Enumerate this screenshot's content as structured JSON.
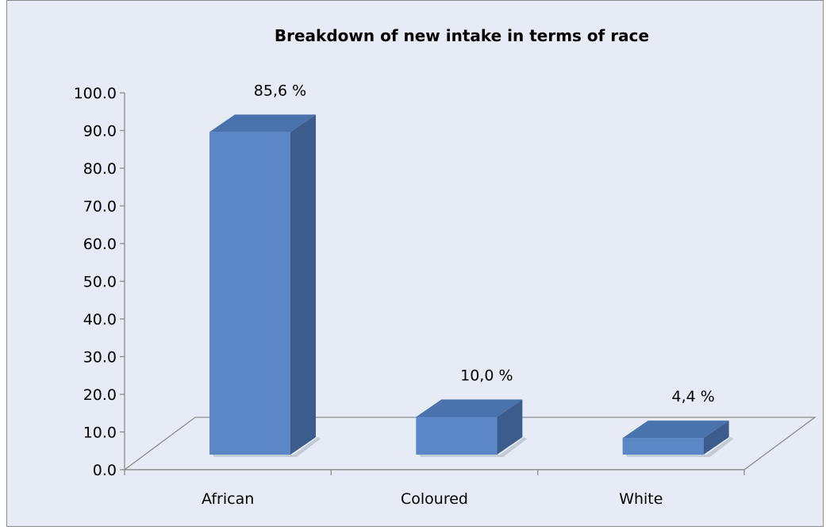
{
  "chart_data": {
    "type": "bar",
    "title": "Breakdown of new intake in terms of race",
    "xlabel": "",
    "ylabel": "",
    "categories": [
      "African",
      "Coloured",
      "White"
    ],
    "values": [
      85.6,
      10.0,
      4.4
    ],
    "data_labels": [
      "85,6 %",
      "10,0 %",
      "4,4 %"
    ],
    "y_ticks": [
      "0.0",
      "10.0",
      "20.0",
      "30.0",
      "40.0",
      "50.0",
      "60.0",
      "70.0",
      "80.0",
      "90.0",
      "100.0"
    ],
    "ylim": [
      0,
      100
    ],
    "grid": false,
    "legend": "none",
    "style": "3d-column",
    "colors": {
      "bar_front": "#5b87c6",
      "bar_side": "#3b5c8d",
      "bar_top": "#4a72ac",
      "background": "#e6ebf5",
      "axis": "#8c8c8c"
    }
  }
}
